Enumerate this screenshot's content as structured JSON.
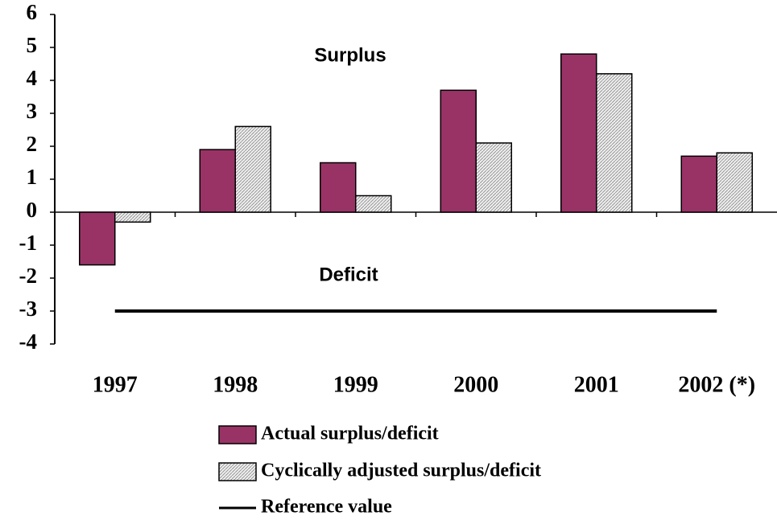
{
  "chart_data": {
    "type": "bar",
    "categories": [
      "1997",
      "1998",
      "1999",
      "2000",
      "2001",
      "2002 (*)"
    ],
    "series": [
      {
        "name": "Actual surplus/deficit",
        "color": "#993366",
        "values": [
          -1.6,
          1.9,
          1.5,
          3.7,
          4.8,
          1.7
        ]
      },
      {
        "name": "Cyclically adjusted surplus/deficit",
        "color": "#d8d8d8",
        "values": [
          -0.3,
          2.6,
          0.5,
          2.1,
          4.2,
          1.8
        ]
      },
      {
        "name": "Reference value",
        "type": "line",
        "color": "#000000",
        "values": [
          -3,
          -3,
          -3,
          -3,
          -3,
          -3
        ]
      }
    ],
    "annotations": [
      "Surplus",
      "Deficit"
    ],
    "ylim": [
      -4,
      6
    ],
    "yticks": [
      -4,
      -3,
      -2,
      -1,
      0,
      1,
      2,
      3,
      4,
      5,
      6
    ],
    "grid": false
  }
}
